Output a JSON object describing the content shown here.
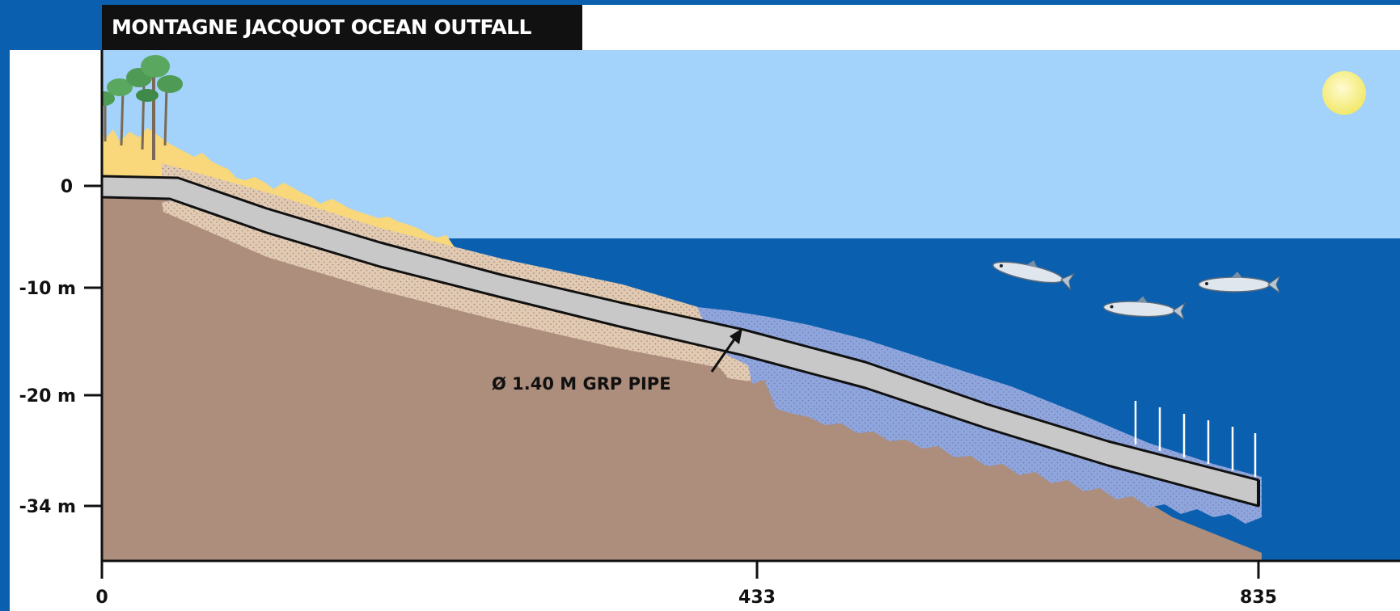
{
  "title": "MONTAGNE JACQUOT OCEAN OUTFALL",
  "depth_labels": [
    "0",
    "-10 m",
    "-20 m",
    "-34 m"
  ],
  "distance_labels": [
    "0",
    "433",
    "835"
  ],
  "pipe_label": "Ø 1.40 M GRP PIPE",
  "colors": {
    "frame": "#0a5fae",
    "sky": "#a3d2fa",
    "sea": "#0a5fae",
    "seabed": "#ad8d7b",
    "sand": "#f8d87a",
    "pipe": "#c8c8c8",
    "backfill_blue": "#8fa5dd",
    "backfill_tan": "#e2c9b2",
    "sun": "#f7f08a"
  },
  "icons": [
    "tree-icon",
    "sun-icon",
    "fish-icon",
    "diffuser-riser-icon"
  ]
}
